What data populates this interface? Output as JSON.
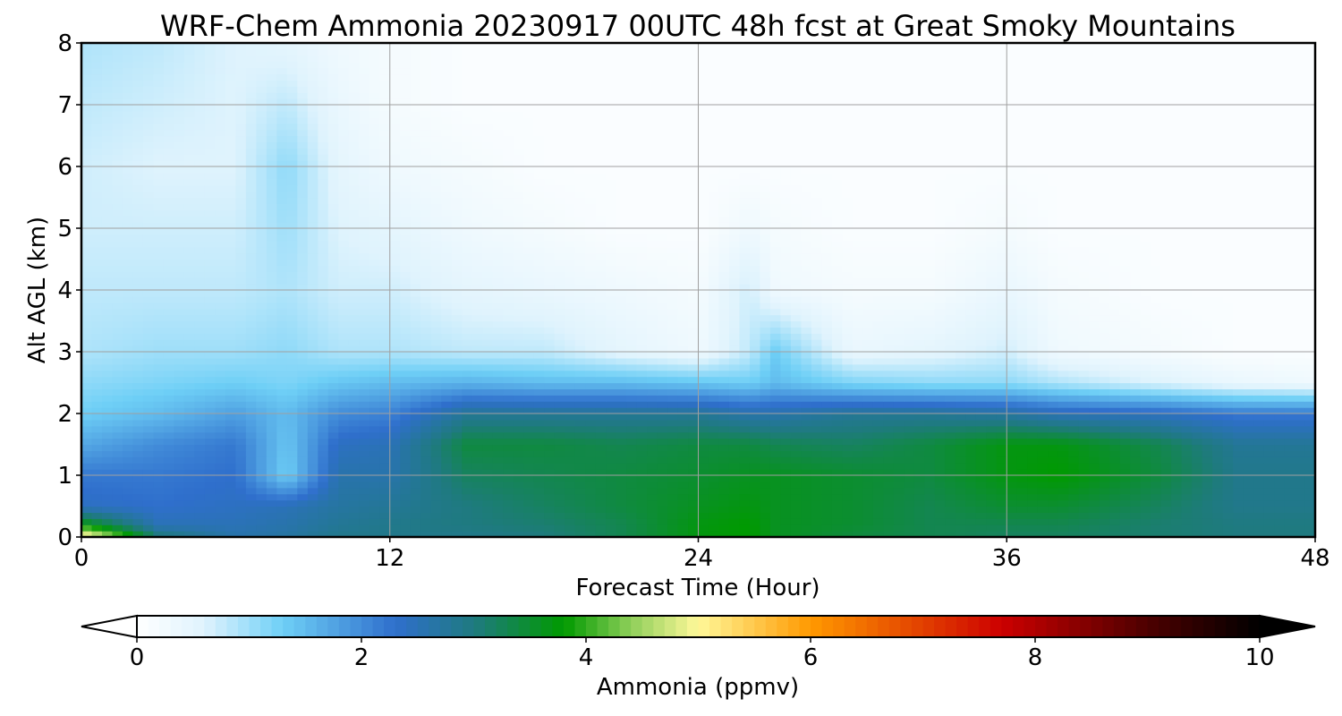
{
  "chart_data": {
    "type": "heatmap",
    "title": "WRF-Chem Ammonia  20230917 00UTC 48h fcst at Great Smoky Mountains",
    "xlabel": "Forecast Time (Hour)",
    "ylabel": "Alt AGL (km)",
    "xlim": [
      0,
      48
    ],
    "ylim": [
      0,
      8
    ],
    "xticks": [
      0,
      12,
      24,
      36,
      48
    ],
    "yticks": [
      0,
      1,
      2,
      3,
      4,
      5,
      6,
      7,
      8
    ],
    "grid": true,
    "x": [
      0,
      3,
      6,
      8,
      10,
      12,
      15,
      18,
      21,
      24,
      26,
      27,
      30,
      33,
      36,
      38,
      42,
      45,
      48
    ],
    "y": [
      0,
      0.2,
      0.5,
      1,
      1.5,
      2,
      2.5,
      3,
      4,
      5,
      6,
      7,
      8
    ],
    "z": [
      [
        5.3,
        3.1,
        2.6,
        2.7,
        2.9,
        2.9,
        2.9,
        3.0,
        3.3,
        3.7,
        3.8,
        3.6,
        3.4,
        3.3,
        3.2,
        3.2,
        3.1,
        3.0,
        3.0
      ],
      [
        3.8,
        2.5,
        2.5,
        2.6,
        2.8,
        2.9,
        3.0,
        3.1,
        3.3,
        3.7,
        3.8,
        3.6,
        3.5,
        3.3,
        3.3,
        3.3,
        3.1,
        3.0,
        3.0
      ],
      [
        2.4,
        2.3,
        2.4,
        2.5,
        2.7,
        2.8,
        3.0,
        3.2,
        3.4,
        3.6,
        3.7,
        3.6,
        3.5,
        3.3,
        3.5,
        3.5,
        3.2,
        2.9,
        2.9
      ],
      [
        2.2,
        2.2,
        2.3,
        1.3,
        2.6,
        2.6,
        3.2,
        3.3,
        3.4,
        3.5,
        3.6,
        3.6,
        3.5,
        3.4,
        3.7,
        3.8,
        3.4,
        2.9,
        2.9
      ],
      [
        1.7,
        2.0,
        2.2,
        1.4,
        2.4,
        2.5,
        3.4,
        3.4,
        3.3,
        3.4,
        3.4,
        3.3,
        3.2,
        3.4,
        3.7,
        3.7,
        3.3,
        2.8,
        2.8
      ],
      [
        1.3,
        1.5,
        1.8,
        1.5,
        2.0,
        2.1,
        2.8,
        2.8,
        2.8,
        2.8,
        2.6,
        2.6,
        2.8,
        2.8,
        2.7,
        2.5,
        2.4,
        2.2,
        2.2
      ],
      [
        1.1,
        1.2,
        1.3,
        1.2,
        1.4,
        1.5,
        1.6,
        1.5,
        1.5,
        1.4,
        1.3,
        1.5,
        1.2,
        1.1,
        1.1,
        0.9,
        0.6,
        0.4,
        0.3
      ],
      [
        0.9,
        1.0,
        1.0,
        1.1,
        0.9,
        0.9,
        0.8,
        0.8,
        0.5,
        0.3,
        0.8,
        1.3,
        0.4,
        0.5,
        0.7,
        0.3,
        0.2,
        0.1,
        0.1
      ],
      [
        0.8,
        0.8,
        0.8,
        0.9,
        0.7,
        0.7,
        0.5,
        0.4,
        0.3,
        0.2,
        0.7,
        0.3,
        0.2,
        0.2,
        0.4,
        0.2,
        0.1,
        0.1,
        0.1
      ],
      [
        0.7,
        0.7,
        0.7,
        1.0,
        0.6,
        0.5,
        0.3,
        0.2,
        0.1,
        0.1,
        0.3,
        0.2,
        0.1,
        0.1,
        0.2,
        0.1,
        0.1,
        0.1,
        0.1
      ],
      [
        0.7,
        0.6,
        0.6,
        1.1,
        0.5,
        0.3,
        0.2,
        0.1,
        0.1,
        0.1,
        0.1,
        0.1,
        0.1,
        0.1,
        0.1,
        0.1,
        0.1,
        0.1,
        0.1
      ],
      [
        0.8,
        0.7,
        0.6,
        0.8,
        0.4,
        0.2,
        0.1,
        0.1,
        0.1,
        0.1,
        0.1,
        0.1,
        0.1,
        0.1,
        0.1,
        0.1,
        0.1,
        0.1,
        0.1
      ],
      [
        0.9,
        0.8,
        0.6,
        0.5,
        0.3,
        0.2,
        0.1,
        0.1,
        0.1,
        0.1,
        0.1,
        0.1,
        0.1,
        0.1,
        0.1,
        0.1,
        0.1,
        0.1,
        0.1
      ]
    ],
    "colorbar": {
      "label": "Ammonia  (ppmv)",
      "range": [
        0,
        10
      ],
      "ticks": [
        0,
        2,
        4,
        6,
        8,
        10
      ],
      "extend": "both",
      "stops": [
        {
          "value": 0.0,
          "color": "#ffffff"
        },
        {
          "value": 0.6,
          "color": "#dff3fd"
        },
        {
          "value": 1.3,
          "color": "#6ecff6"
        },
        {
          "value": 2.3,
          "color": "#2f6fcc"
        },
        {
          "value": 3.0,
          "color": "#1f7a80"
        },
        {
          "value": 3.8,
          "color": "#009a00"
        },
        {
          "value": 4.4,
          "color": "#8fcf5a"
        },
        {
          "value": 5.0,
          "color": "#fff899"
        },
        {
          "value": 6.0,
          "color": "#ff9900"
        },
        {
          "value": 7.7,
          "color": "#cc0000"
        },
        {
          "value": 9.0,
          "color": "#4d0000"
        },
        {
          "value": 10.0,
          "color": "#000000"
        }
      ]
    }
  }
}
